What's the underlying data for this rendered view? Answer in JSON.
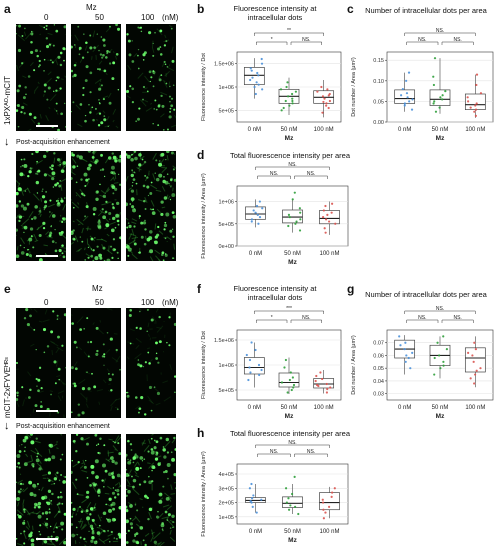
{
  "panels": {
    "a": {
      "label": "a",
      "top_title": "Mz",
      "columns": [
        "0",
        "50",
        "100"
      ],
      "unit": "(nM)",
      "row_label": "1xPXᴬᴼ-mCIT",
      "post_label": "Post-acquisition enhancement"
    },
    "e": {
      "label": "e",
      "top_title": "Mz",
      "columns": [
        "0",
        "50",
        "100"
      ],
      "unit": "(nM)",
      "row_label": "mCIT-2xFYVEᴴᴿˢ",
      "post_label": "Post-acquisition enhancement"
    }
  },
  "colors": {
    "c0": "#4a90d9",
    "c50": "#2e9e3a",
    "c100": "#d9534f",
    "cell": "#3ec23e"
  },
  "chart_data": [
    {
      "id": "b",
      "label": "b",
      "type": "box",
      "title": "Fluorescence intensity at intracellular dots",
      "title_lines": [
        "Fluorescence intensity at",
        "intracellular dots"
      ],
      "xlabel": "Mz",
      "ylabel": "Fluorescence intensity / Dot",
      "categories": [
        "0 nM",
        "50 nM",
        "100 nM"
      ],
      "yticks": [
        "5e+05",
        "1e+06",
        "1.5e+06"
      ],
      "ytick_values": [
        500000,
        1000000,
        1500000
      ],
      "ylim": [
        250000,
        1750000
      ],
      "boxes": [
        {
          "q1": 1050000,
          "median": 1250000,
          "q3": 1420000,
          "min": 750000,
          "max": 1620000
        },
        {
          "q1": 650000,
          "median": 800000,
          "q3": 950000,
          "min": 400000,
          "max": 1200000
        },
        {
          "q1": 650000,
          "median": 780000,
          "q3": 920000,
          "min": 350000,
          "max": 1150000
        }
      ],
      "points": [
        [
          1150000,
          1250000,
          1350000,
          1500000,
          1600000,
          1000000,
          950000,
          1300000,
          1400000,
          1100000,
          1200000,
          850000,
          1050000
        ],
        [
          600000,
          700000,
          800000,
          900000,
          1000000,
          750000,
          650000,
          550000,
          850000,
          950000,
          1100000,
          500000,
          700000
        ],
        [
          550000,
          650000,
          750000,
          850000,
          950000,
          700000,
          800000,
          600000,
          900000,
          1000000,
          450000,
          680000,
          820000
        ]
      ],
      "sig": [
        {
          "from": 0,
          "to": 2,
          "label": "**",
          "level": 0
        },
        {
          "from": 0,
          "to": 1,
          "label": "*",
          "level": 1
        },
        {
          "from": 1,
          "to": 2,
          "label": "NS.",
          "level": 1
        }
      ]
    },
    {
      "id": "c",
      "label": "c",
      "type": "box",
      "title": "Number of intracellular dots per area",
      "title_lines": [
        "Number of intracellular dots per area"
      ],
      "xlabel": "Mz",
      "ylabel": "Dot number / Area (μm²)",
      "categories": [
        "0 nM",
        "50 nM",
        "100 nM"
      ],
      "yticks": [
        "0.00",
        "0.05",
        "0.10",
        "0.15"
      ],
      "ytick_values": [
        0,
        0.05,
        0.1,
        0.15
      ],
      "ylim": [
        0,
        0.17
      ],
      "boxes": [
        {
          "q1": 0.045,
          "median": 0.057,
          "q3": 0.078,
          "min": 0.025,
          "max": 0.12
        },
        {
          "q1": 0.04,
          "median": 0.055,
          "q3": 0.078,
          "min": 0.02,
          "max": 0.155
        },
        {
          "q1": 0.03,
          "median": 0.042,
          "q3": 0.068,
          "min": 0.01,
          "max": 0.115
        }
      ],
      "points": [
        [
          0.03,
          0.045,
          0.055,
          0.06,
          0.065,
          0.07,
          0.08,
          0.1,
          0.12,
          0.05,
          0.04
        ],
        [
          0.025,
          0.035,
          0.045,
          0.055,
          0.065,
          0.075,
          0.09,
          0.11,
          0.155,
          0.05,
          0.06
        ],
        [
          0.015,
          0.025,
          0.035,
          0.045,
          0.05,
          0.06,
          0.07,
          0.09,
          0.115,
          0.04,
          0.03
        ]
      ],
      "sig": [
        {
          "from": 0,
          "to": 2,
          "label": "NS.",
          "level": 0
        },
        {
          "from": 0,
          "to": 1,
          "label": "NS.",
          "level": 1
        },
        {
          "from": 1,
          "to": 2,
          "label": "NS.",
          "level": 1
        }
      ]
    },
    {
      "id": "d",
      "label": "d",
      "type": "box",
      "title": "Total fluorescence intensity per area",
      "title_lines": [
        "Total fluorescence intensity per area"
      ],
      "xlabel": "Mz",
      "ylabel": "Fluorescence intensity / Area (μm²)",
      "categories": [
        "0 nM",
        "50 nM",
        "100 nM"
      ],
      "yticks": [
        "0e+00",
        "5e+05",
        "1e+06"
      ],
      "ytick_values": [
        0,
        500000,
        1000000
      ],
      "ylim": [
        0,
        1350000
      ],
      "boxes": [
        {
          "q1": 600000,
          "median": 720000,
          "q3": 880000,
          "min": 420000,
          "max": 1050000
        },
        {
          "q1": 520000,
          "median": 650000,
          "q3": 810000,
          "min": 300000,
          "max": 1050000
        },
        {
          "q1": 500000,
          "median": 620000,
          "q3": 800000,
          "min": 250000,
          "max": 1000000
        }
      ],
      "points": [
        [
          500000,
          600000,
          700000,
          800000,
          900000,
          1000000,
          650000,
          750000,
          550000,
          850000
        ],
        [
          350000,
          450000,
          550000,
          650000,
          750000,
          850000,
          1050000,
          600000,
          500000,
          700000,
          1200000
        ],
        [
          300000,
          400000,
          500000,
          600000,
          700000,
          800000,
          900000,
          550000,
          650000,
          750000,
          950000
        ]
      ],
      "sig": [
        {
          "from": 0,
          "to": 2,
          "label": "NS.",
          "level": 0
        },
        {
          "from": 0,
          "to": 1,
          "label": "NS.",
          "level": 1
        },
        {
          "from": 1,
          "to": 2,
          "label": "NS.",
          "level": 1
        }
      ]
    },
    {
      "id": "f",
      "label": "f",
      "type": "box",
      "title": "Fluorescence intensity at intracellular dots",
      "title_lines": [
        "Fluorescence intensity at",
        "intracellular dots"
      ],
      "xlabel": "Mz",
      "ylabel": "Fluorescence intensity / Dot",
      "categories": [
        "0 nM",
        "50 nM",
        "100 nM"
      ],
      "yticks": [
        "5e+05",
        "1e+06",
        "1.5e+06"
      ],
      "ytick_values": [
        500000,
        1000000,
        1500000
      ],
      "ylim": [
        300000,
        1700000
      ],
      "boxes": [
        {
          "q1": 820000,
          "median": 950000,
          "q3": 1150000,
          "min": 550000,
          "max": 1450000
        },
        {
          "q1": 560000,
          "median": 650000,
          "q3": 840000,
          "min": 420000,
          "max": 1150000
        },
        {
          "q1": 540000,
          "median": 620000,
          "q3": 730000,
          "min": 430000,
          "max": 900000
        }
      ],
      "points": [
        [
          700000,
          800000,
          900000,
          1000000,
          1100000,
          1200000,
          1300000,
          1450000,
          850000,
          950000
        ],
        [
          450000,
          550000,
          650000,
          750000,
          850000,
          950000,
          1100000,
          600000,
          500000,
          700000
        ],
        [
          450000,
          520000,
          580000,
          620000,
          680000,
          720000,
          780000,
          850000,
          600000,
          550000
        ]
      ],
      "sig": [
        {
          "from": 0,
          "to": 2,
          "label": "***",
          "level": 0
        },
        {
          "from": 0,
          "to": 1,
          "label": "*",
          "level": 1
        },
        {
          "from": 1,
          "to": 2,
          "label": "NS.",
          "level": 1
        }
      ]
    },
    {
      "id": "g",
      "label": "g",
      "type": "box",
      "title": "Number of intracellular dots per area",
      "title_lines": [
        "Number of intracellular dots per area"
      ],
      "xlabel": "Mz",
      "ylabel": "Dot number / Area (μm²)",
      "categories": [
        "0 nM",
        "50 nM",
        "100 nM"
      ],
      "yticks": [
        "0.03",
        "0.04",
        "0.05",
        "0.06",
        "0.07"
      ],
      "ytick_values": [
        0.03,
        0.04,
        0.05,
        0.06,
        0.07
      ],
      "ylim": [
        0.025,
        0.08
      ],
      "boxes": [
        {
          "q1": 0.058,
          "median": 0.065,
          "q3": 0.072,
          "min": 0.045,
          "max": 0.076
        },
        {
          "q1": 0.052,
          "median": 0.06,
          "q3": 0.068,
          "min": 0.042,
          "max": 0.075
        },
        {
          "q1": 0.047,
          "median": 0.058,
          "q3": 0.066,
          "min": 0.035,
          "max": 0.075
        }
      ],
      "points": [
        [
          0.05,
          0.055,
          0.06,
          0.065,
          0.07,
          0.075,
          0.062,
          0.068,
          0.058
        ],
        [
          0.045,
          0.05,
          0.055,
          0.06,
          0.065,
          0.07,
          0.075,
          0.052,
          0.058
        ],
        [
          0.038,
          0.045,
          0.05,
          0.055,
          0.06,
          0.065,
          0.07,
          0.042,
          0.048,
          0.062
        ]
      ],
      "sig": [
        {
          "from": 0,
          "to": 2,
          "label": "NS.",
          "level": 0
        },
        {
          "from": 0,
          "to": 1,
          "label": "NS.",
          "level": 1
        },
        {
          "from": 1,
          "to": 2,
          "label": "NS.",
          "level": 1
        }
      ]
    },
    {
      "id": "h",
      "label": "h",
      "type": "box",
      "title": "Total fluorescence intensity per area",
      "title_lines": [
        "Total fluorescence intensity per area"
      ],
      "xlabel": "Mz",
      "ylabel": "Fluorescence intensity / Area (μm²)",
      "categories": [
        "0 nM",
        "50 nM",
        "100 nM"
      ],
      "yticks": [
        "1e+05",
        "2e+05",
        "3e+05",
        "4e+05"
      ],
      "ytick_values": [
        100000,
        200000,
        300000,
        400000
      ],
      "ylim": [
        50000,
        470000
      ],
      "boxes": [
        {
          "q1": 200000,
          "median": 215000,
          "q3": 235000,
          "min": 130000,
          "max": 330000
        },
        {
          "q1": 165000,
          "median": 195000,
          "q3": 240000,
          "min": 120000,
          "max": 330000
        },
        {
          "q1": 150000,
          "median": 200000,
          "q3": 270000,
          "min": 90000,
          "max": 310000
        }
      ],
      "points": [
        [
          130000,
          170000,
          200000,
          210000,
          220000,
          230000,
          250000,
          300000,
          330000
        ],
        [
          120000,
          150000,
          180000,
          200000,
          230000,
          260000,
          300000,
          380000,
          170000
        ],
        [
          90000,
          130000,
          170000,
          200000,
          240000,
          270000,
          300000,
          150000,
          220000
        ]
      ],
      "sig": [
        {
          "from": 0,
          "to": 2,
          "label": "NS.",
          "level": 0
        },
        {
          "from": 0,
          "to": 1,
          "label": "NS.",
          "level": 1
        },
        {
          "from": 1,
          "to": 2,
          "label": "NS.",
          "level": 1
        }
      ]
    }
  ]
}
